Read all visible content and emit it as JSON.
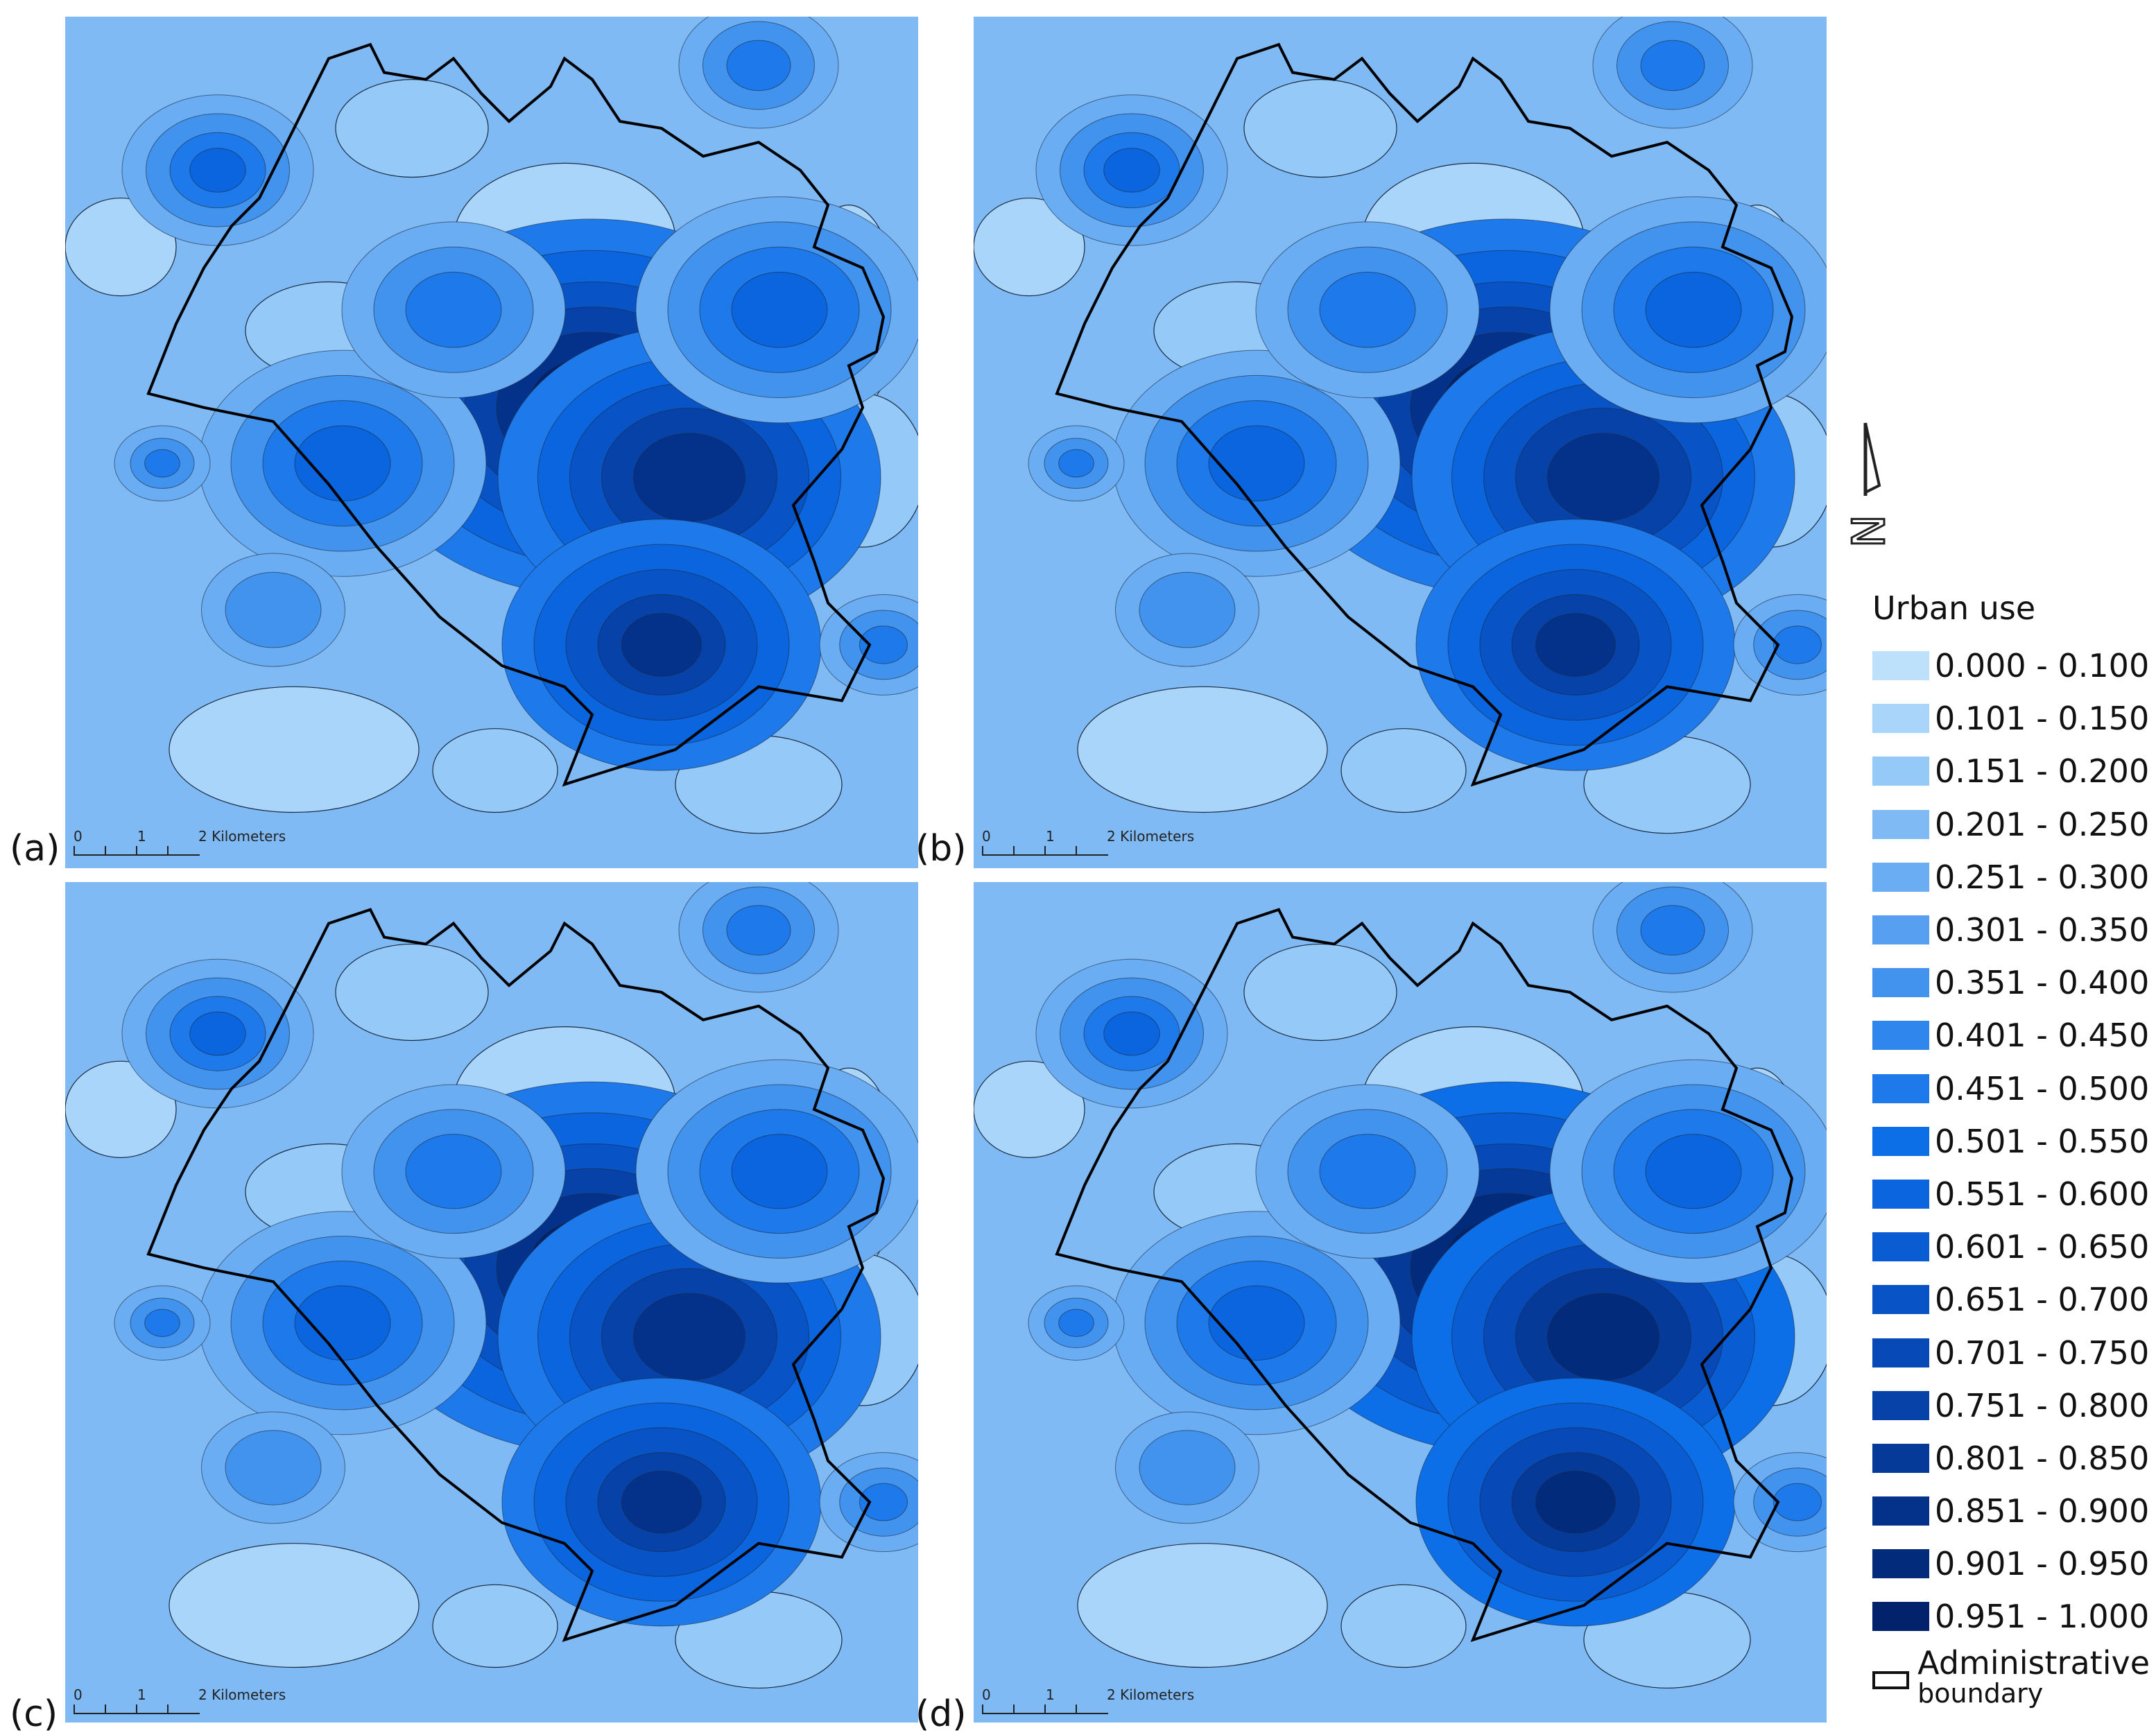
{
  "panels": [
    {
      "tag": "(a)",
      "scale_zero": "0",
      "scale_one": "1",
      "scale_unit": "2 Kilometers"
    },
    {
      "tag": "(b)",
      "scale_zero": "0",
      "scale_one": "1",
      "scale_unit": "2 Kilometers"
    },
    {
      "tag": "(c)",
      "scale_zero": "0",
      "scale_one": "1",
      "scale_unit": "2 Kilometers"
    },
    {
      "tag": "(d)",
      "scale_zero": "0",
      "scale_one": "1",
      "scale_unit": "2 Kilometers"
    }
  ],
  "legend": {
    "title": "Urban use",
    "classes": [
      {
        "label": "0.000 - 0.100",
        "color": "#bde0fb"
      },
      {
        "label": "0.101 - 0.150",
        "color": "#a9d5fa"
      },
      {
        "label": "0.151 - 0.200",
        "color": "#94c9f8"
      },
      {
        "label": "0.201 - 0.250",
        "color": "#7fbaf5"
      },
      {
        "label": "0.251 - 0.300",
        "color": "#6badf3"
      },
      {
        "label": "0.301 - 0.350",
        "color": "#569ff1"
      },
      {
        "label": "0.351 - 0.400",
        "color": "#4293ee"
      },
      {
        "label": "0.401 - 0.450",
        "color": "#2f86ec"
      },
      {
        "label": "0.451 - 0.500",
        "color": "#1e7aea"
      },
      {
        "label": "0.501 - 0.550",
        "color": "#0d6fe8"
      },
      {
        "label": "0.551 - 0.600",
        "color": "#0a65de"
      },
      {
        "label": "0.601 - 0.650",
        "color": "#095cd2"
      },
      {
        "label": "0.651 - 0.700",
        "color": "#0853c5"
      },
      {
        "label": "0.701 - 0.750",
        "color": "#074ab7"
      },
      {
        "label": "0.751 - 0.800",
        "color": "#0642a8"
      },
      {
        "label": "0.801 - 0.850",
        "color": "#053a99"
      },
      {
        "label": "0.851 - 0.900",
        "color": "#04328a"
      },
      {
        "label": "0.901 - 0.950",
        "color": "#032b7b"
      },
      {
        "label": "0.951 - 1.000",
        "color": "#02236b"
      }
    ],
    "boundary_title": "Administrative",
    "boundary_subtitle": "boundary"
  },
  "north_arrow": {
    "letter": "N"
  }
}
